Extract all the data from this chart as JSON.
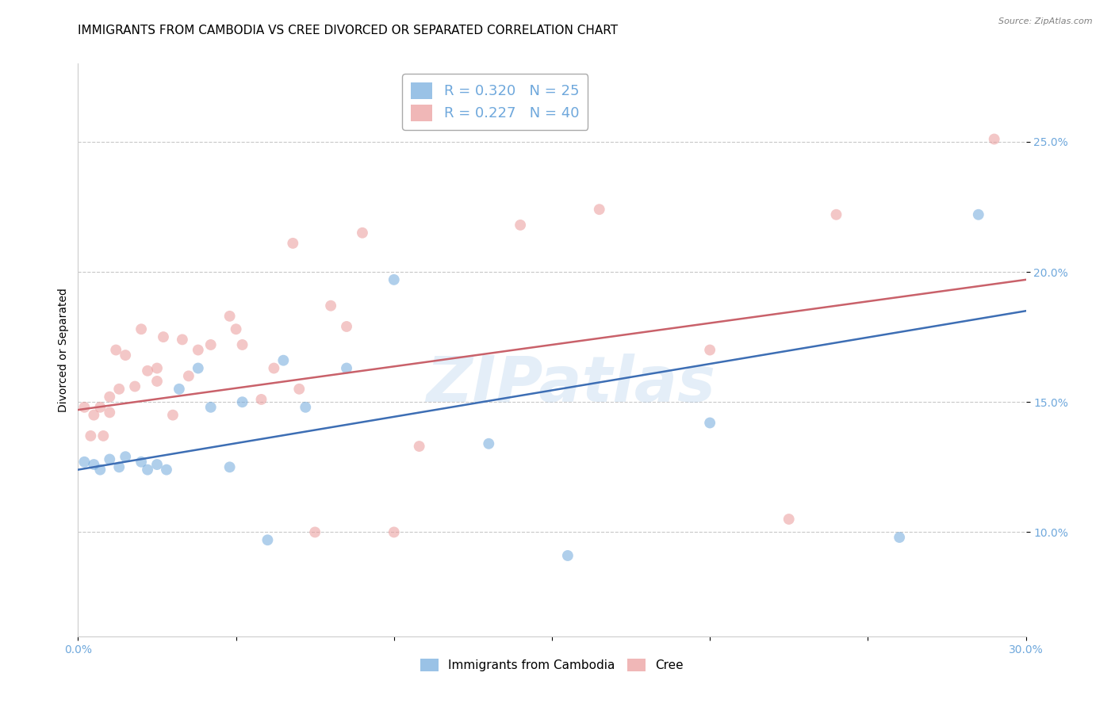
{
  "title": "IMMIGRANTS FROM CAMBODIA VS CREE DIVORCED OR SEPARATED CORRELATION CHART",
  "source": "Source: ZipAtlas.com",
  "ylabel": "Divorced or Separated",
  "xlim": [
    0.0,
    0.3
  ],
  "ylim": [
    0.06,
    0.28
  ],
  "y_ticks": [
    0.1,
    0.15,
    0.2,
    0.25
  ],
  "y_tick_labels": [
    "10.0%",
    "15.0%",
    "20.0%",
    "25.0%"
  ],
  "x_tick_positions": [
    0.0,
    0.05,
    0.1,
    0.15,
    0.2,
    0.25,
    0.3
  ],
  "x_tick_labels": [
    "0.0%",
    "",
    "",
    "",
    "",
    "",
    "30.0%"
  ],
  "blue_color": "#6fa8dc",
  "pink_color": "#ea9999",
  "blue_line_color": "#3d6eb4",
  "pink_line_color": "#c9616a",
  "legend_blue_label": "Immigrants from Cambodia",
  "legend_pink_label": "Cree",
  "R_blue": 0.32,
  "N_blue": 25,
  "R_pink": 0.227,
  "N_pink": 40,
  "watermark": "ZIPatlas",
  "blue_points_x": [
    0.002,
    0.005,
    0.007,
    0.01,
    0.013,
    0.015,
    0.02,
    0.022,
    0.025,
    0.028,
    0.032,
    0.038,
    0.042,
    0.048,
    0.052,
    0.06,
    0.065,
    0.072,
    0.085,
    0.1,
    0.13,
    0.155,
    0.2,
    0.26,
    0.285
  ],
  "blue_points_y": [
    0.127,
    0.126,
    0.124,
    0.128,
    0.125,
    0.129,
    0.127,
    0.124,
    0.126,
    0.124,
    0.155,
    0.163,
    0.148,
    0.125,
    0.15,
    0.097,
    0.166,
    0.148,
    0.163,
    0.197,
    0.134,
    0.091,
    0.142,
    0.098,
    0.222
  ],
  "pink_points_x": [
    0.002,
    0.004,
    0.005,
    0.007,
    0.008,
    0.01,
    0.01,
    0.012,
    0.013,
    0.015,
    0.018,
    0.02,
    0.022,
    0.025,
    0.025,
    0.027,
    0.03,
    0.033,
    0.035,
    0.038,
    0.042,
    0.048,
    0.05,
    0.052,
    0.058,
    0.062,
    0.068,
    0.07,
    0.075,
    0.08,
    0.085,
    0.09,
    0.1,
    0.108,
    0.14,
    0.165,
    0.2,
    0.225,
    0.24,
    0.29
  ],
  "pink_points_y": [
    0.148,
    0.137,
    0.145,
    0.148,
    0.137,
    0.152,
    0.146,
    0.17,
    0.155,
    0.168,
    0.156,
    0.178,
    0.162,
    0.163,
    0.158,
    0.175,
    0.145,
    0.174,
    0.16,
    0.17,
    0.172,
    0.183,
    0.178,
    0.172,
    0.151,
    0.163,
    0.211,
    0.155,
    0.1,
    0.187,
    0.179,
    0.215,
    0.1,
    0.133,
    0.218,
    0.224,
    0.17,
    0.105,
    0.222,
    0.251
  ],
  "blue_line_y_start": 0.124,
  "blue_line_y_end": 0.185,
  "pink_line_y_start": 0.147,
  "pink_line_y_end": 0.197,
  "grid_color": "#c8c8c8",
  "background_color": "#ffffff",
  "title_fontsize": 11,
  "axis_label_fontsize": 10,
  "tick_fontsize": 10,
  "legend_fontsize": 13,
  "marker_size": 100,
  "marker_alpha": 0.55,
  "line_width": 1.8
}
